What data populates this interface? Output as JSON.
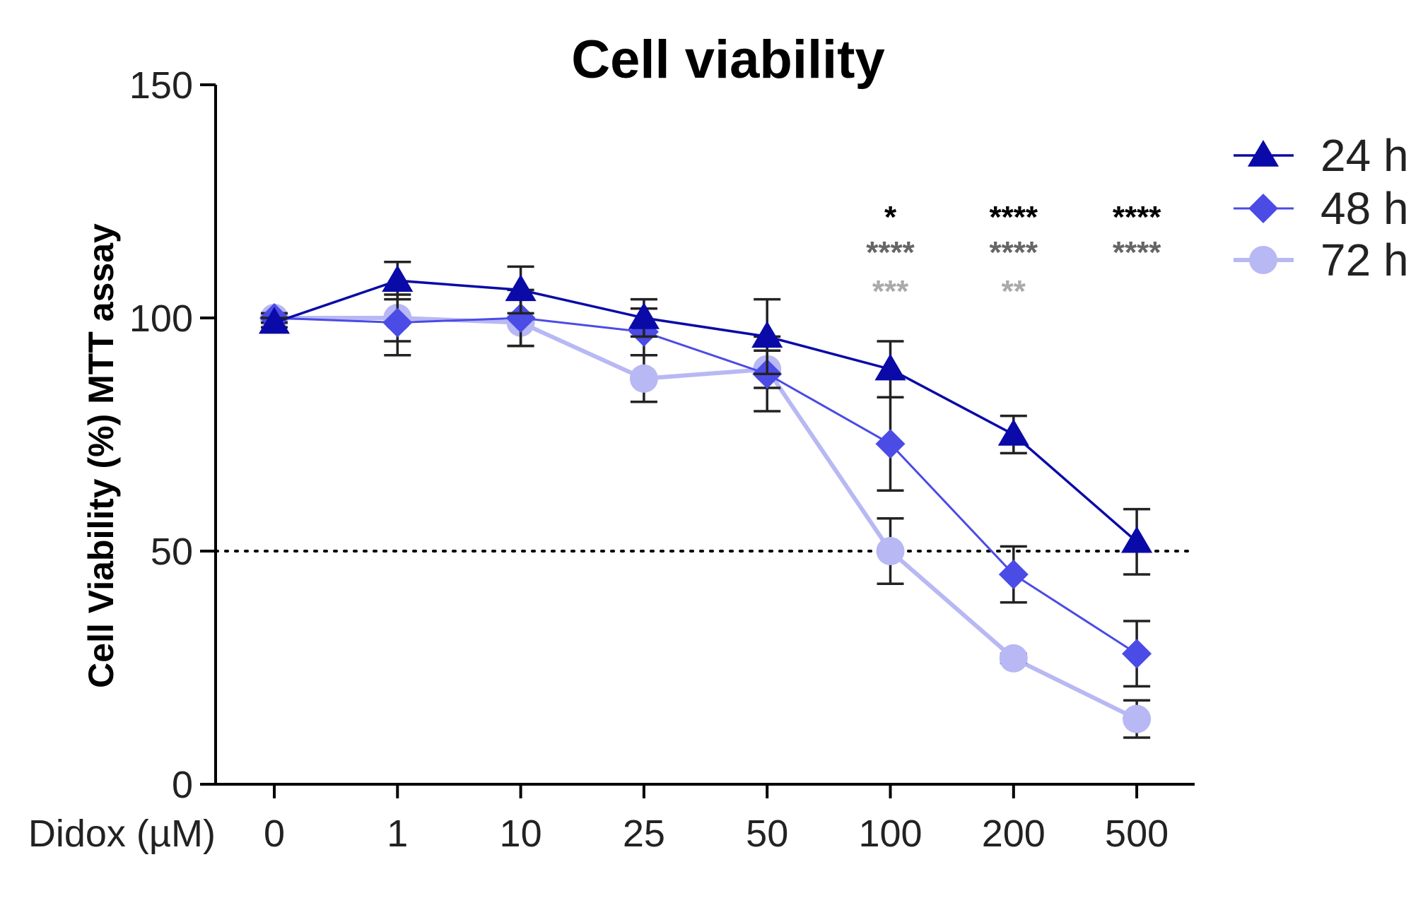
{
  "chart_data": {
    "type": "line",
    "title": "Cell viability",
    "xlabel": "Didox (µM)",
    "ylabel": "Cell Viability (%) MTT assay",
    "categories": [
      "0",
      "1",
      "10",
      "25",
      "50",
      "100",
      "200",
      "500"
    ],
    "ylim": [
      0,
      150
    ],
    "yticks": [
      "0",
      "50",
      "100",
      "150"
    ],
    "reference_line": {
      "y": 50,
      "style": "dotted"
    },
    "legend_position": "top-right",
    "series": [
      {
        "name": "24 h",
        "marker": "triangle",
        "color": "#0A0AA8",
        "values": [
          99,
          108,
          106,
          100,
          96,
          89,
          75,
          52
        ],
        "errors": [
          1,
          4,
          5,
          4,
          8,
          6,
          4,
          7
        ]
      },
      {
        "name": "48 h",
        "marker": "diamond",
        "color": "#4B4BE6",
        "values": [
          100,
          99,
          100,
          97,
          88,
          73,
          45,
          28
        ],
        "errors": [
          1,
          7,
          6,
          5,
          8,
          10,
          6,
          7
        ]
      },
      {
        "name": "72 h",
        "marker": "circle",
        "color": "#B8B8F4",
        "values": [
          100,
          100,
          99,
          87,
          89,
          50,
          27,
          14
        ],
        "errors": [
          1,
          5,
          5,
          5,
          4,
          7,
          1,
          4
        ]
      }
    ],
    "significance": [
      {
        "category": "100",
        "rows": [
          {
            "text": "*",
            "color": "#000000"
          },
          {
            "text": "****",
            "color": "#666666"
          },
          {
            "text": "***",
            "color": "#AAAAAA"
          }
        ]
      },
      {
        "category": "200",
        "rows": [
          {
            "text": "****",
            "color": "#000000"
          },
          {
            "text": "****",
            "color": "#666666"
          },
          {
            "text": "**",
            "color": "#AAAAAA"
          }
        ]
      },
      {
        "category": "500",
        "rows": [
          {
            "text": "****",
            "color": "#000000"
          },
          {
            "text": "****",
            "color": "#666666"
          }
        ]
      }
    ]
  }
}
